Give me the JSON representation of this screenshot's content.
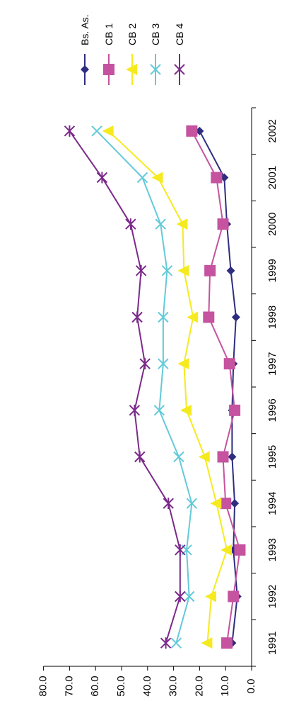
{
  "chart_data": {
    "type": "line",
    "title": "",
    "xlabel": "",
    "ylabel": "",
    "orientation": "rotated 90 degrees clockwise",
    "categories": [
      "1991",
      "1992",
      "1993",
      "1994",
      "1995",
      "1996",
      "1997",
      "1998",
      "1999",
      "2000",
      "2001",
      "2002"
    ],
    "ylim": [
      0,
      80
    ],
    "yticks": [
      "0.0",
      "10.0",
      "20.0",
      "30.0",
      "40.0",
      "50.0",
      "60.0",
      "70.0",
      "80.0"
    ],
    "grid": false,
    "legend_position": "top",
    "series": [
      {
        "name": "Bs. As.",
        "color": "#2e2d7f",
        "marker": "diamond",
        "values": [
          7.5,
          5.5,
          7.0,
          6.5,
          7.5,
          7.5,
          7.0,
          6.0,
          8.0,
          9.5,
          10.5,
          20.0
        ]
      },
      {
        "name": "CB 1",
        "color": "#c553a0",
        "marker": "square",
        "values": [
          9.5,
          7.0,
          4.5,
          10.0,
          11.0,
          6.5,
          8.5,
          16.5,
          16.0,
          11.0,
          13.5,
          23.0
        ]
      },
      {
        "name": "CB 2",
        "color": "#f5ea1f",
        "marker": "triangle",
        "values": [
          17.0,
          15.5,
          9.5,
          13.5,
          18.0,
          25.0,
          26.0,
          22.5,
          26.0,
          26.5,
          36.0,
          55.0
        ]
      },
      {
        "name": "CB 3",
        "color": "#63cad8",
        "marker": "x",
        "values": [
          29.0,
          24.0,
          25.0,
          23.0,
          28.0,
          35.5,
          34.0,
          34.0,
          32.5,
          35.0,
          42.0,
          59.5
        ]
      },
      {
        "name": "CB 4",
        "color": "#7b2a8a",
        "marker": "asterisk",
        "values": [
          33.0,
          27.5,
          27.5,
          32.0,
          43.0,
          45.0,
          41.0,
          44.0,
          42.5,
          46.5,
          57.5,
          70.0
        ]
      }
    ]
  }
}
